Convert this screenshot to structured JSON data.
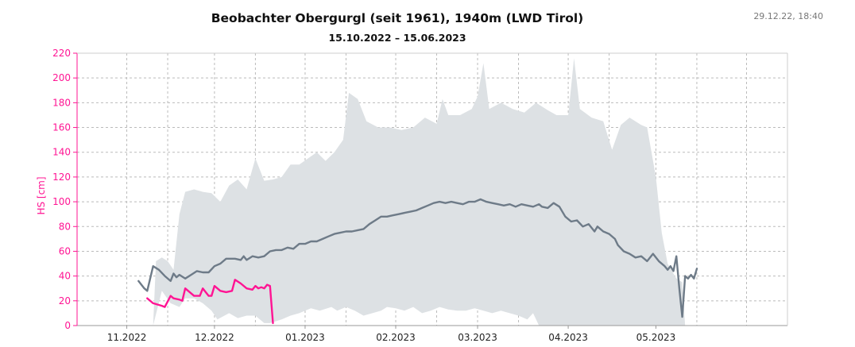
{
  "header": {
    "title": "Beobachter Obergurgl (seit 1961), 1940m (LWD Tirol)",
    "subtitle": "15.10.2022 – 15.06.2023",
    "timestamp": "29.12.22, 18:40"
  },
  "colors": {
    "axis_accent": "#ff1493",
    "current_season": "#ff1493",
    "median": "#6e7b88",
    "range_band": "#dde1e4",
    "grid": "#bbbbbb"
  },
  "chart_data": {
    "type": "area",
    "ylabel": "HS [cm]",
    "xlabel": "",
    "ylim": [
      0,
      220
    ],
    "yticks": [
      0,
      20,
      40,
      60,
      80,
      100,
      120,
      140,
      160,
      180,
      200,
      220
    ],
    "xlim": [
      "2022-10-15",
      "2023-06-15"
    ],
    "xticks": [
      {
        "date": "2022-11-01",
        "label": "11.2022"
      },
      {
        "date": "2022-12-01",
        "label": "12.2022"
      },
      {
        "date": "2023-01-01",
        "label": "01.2023"
      },
      {
        "date": "2023-02-01",
        "label": "02.2023"
      },
      {
        "date": "2023-03-01",
        "label": "03.2023"
      },
      {
        "date": "2023-04-01",
        "label": "04.2023"
      },
      {
        "date": "2023-05-01",
        "label": "05.2023"
      }
    ],
    "x_gridlines": [
      "2022-10-15",
      "2022-11-01",
      "2022-11-15",
      "2022-12-01",
      "2022-12-15",
      "2023-01-01",
      "2023-01-15",
      "2023-02-01",
      "2023-02-15",
      "2023-03-01",
      "2023-03-15",
      "2023-04-01",
      "2023-04-15",
      "2023-05-01",
      "2023-05-15",
      "2023-06-01"
    ],
    "grid": true,
    "series": [
      {
        "role": "range",
        "upper": [
          [
            "2022-11-10",
            0
          ],
          [
            "2022-11-11",
            52
          ],
          [
            "2022-11-13",
            55
          ],
          [
            "2022-11-15",
            52
          ],
          [
            "2022-11-17",
            45
          ],
          [
            "2022-11-19",
            90
          ],
          [
            "2022-11-21",
            108
          ],
          [
            "2022-11-24",
            110
          ],
          [
            "2022-11-27",
            108
          ],
          [
            "2022-11-30",
            107
          ],
          [
            "2022-12-03",
            100
          ],
          [
            "2022-12-06",
            113
          ],
          [
            "2022-12-09",
            118
          ],
          [
            "2022-12-12",
            110
          ],
          [
            "2022-12-15",
            135
          ],
          [
            "2022-12-18",
            117
          ],
          [
            "2022-12-21",
            118
          ],
          [
            "2022-12-24",
            120
          ],
          [
            "2022-12-27",
            130
          ],
          [
            "2022-12-30",
            130
          ],
          [
            "2023-01-02",
            135
          ],
          [
            "2023-01-05",
            140
          ],
          [
            "2023-01-08",
            133
          ],
          [
            "2023-01-11",
            140
          ],
          [
            "2023-01-14",
            150
          ],
          [
            "2023-01-16",
            188
          ],
          [
            "2023-01-19",
            183
          ],
          [
            "2023-01-22",
            165
          ],
          [
            "2023-01-26",
            160
          ],
          [
            "2023-01-30",
            160
          ],
          [
            "2023-02-03",
            158
          ],
          [
            "2023-02-07",
            160
          ],
          [
            "2023-02-11",
            168
          ],
          [
            "2023-02-15",
            163
          ],
          [
            "2023-02-17",
            183
          ],
          [
            "2023-02-19",
            170
          ],
          [
            "2023-02-23",
            170
          ],
          [
            "2023-02-27",
            175
          ],
          [
            "2023-03-01",
            185
          ],
          [
            "2023-03-03",
            212
          ],
          [
            "2023-03-05",
            175
          ],
          [
            "2023-03-09",
            180
          ],
          [
            "2023-03-13",
            175
          ],
          [
            "2023-03-17",
            172
          ],
          [
            "2023-03-21",
            180
          ],
          [
            "2023-03-25",
            174
          ],
          [
            "2023-03-28",
            170
          ],
          [
            "2023-04-01",
            170
          ],
          [
            "2023-04-03",
            216
          ],
          [
            "2023-04-05",
            175
          ],
          [
            "2023-04-09",
            168
          ],
          [
            "2023-04-13",
            165
          ],
          [
            "2023-04-16",
            142
          ],
          [
            "2023-04-19",
            162
          ],
          [
            "2023-04-22",
            168
          ],
          [
            "2023-04-26",
            162
          ],
          [
            "2023-04-28",
            160
          ],
          [
            "2023-05-01",
            120
          ],
          [
            "2023-05-03",
            75
          ],
          [
            "2023-05-05",
            50
          ],
          [
            "2023-05-08",
            38
          ],
          [
            "2023-05-10",
            35
          ],
          [
            "2023-05-11",
            0
          ]
        ],
        "lower": [
          [
            "2022-11-10",
            0
          ],
          [
            "2022-11-13",
            28
          ],
          [
            "2022-11-16",
            18
          ],
          [
            "2022-11-19",
            15
          ],
          [
            "2022-11-21",
            22
          ],
          [
            "2022-11-24",
            22
          ],
          [
            "2022-11-27",
            18
          ],
          [
            "2022-11-30",
            12
          ],
          [
            "2022-12-02",
            5
          ],
          [
            "2022-12-06",
            10
          ],
          [
            "2022-12-09",
            6
          ],
          [
            "2022-12-12",
            8
          ],
          [
            "2022-12-15",
            8
          ],
          [
            "2022-12-18",
            2
          ],
          [
            "2022-12-20",
            2
          ],
          [
            "2022-12-24",
            5
          ],
          [
            "2022-12-27",
            8
          ],
          [
            "2022-12-30",
            10
          ],
          [
            "2023-01-03",
            14
          ],
          [
            "2023-01-06",
            12
          ],
          [
            "2023-01-10",
            15
          ],
          [
            "2023-01-12",
            12
          ],
          [
            "2023-01-15",
            15
          ],
          [
            "2023-01-18",
            12
          ],
          [
            "2023-01-21",
            8
          ],
          [
            "2023-01-24",
            10
          ],
          [
            "2023-01-27",
            12
          ],
          [
            "2023-01-29",
            15
          ],
          [
            "2023-02-01",
            14
          ],
          [
            "2023-02-04",
            12
          ],
          [
            "2023-02-07",
            15
          ],
          [
            "2023-02-10",
            10
          ],
          [
            "2023-02-13",
            12
          ],
          [
            "2023-02-16",
            15
          ],
          [
            "2023-02-19",
            13
          ],
          [
            "2023-02-22",
            12
          ],
          [
            "2023-02-25",
            12
          ],
          [
            "2023-02-28",
            14
          ],
          [
            "2023-03-03",
            12
          ],
          [
            "2023-03-06",
            10
          ],
          [
            "2023-03-09",
            12
          ],
          [
            "2023-03-12",
            10
          ],
          [
            "2023-03-15",
            8
          ],
          [
            "2023-03-18",
            5
          ],
          [
            "2023-03-20",
            10
          ],
          [
            "2023-03-22",
            0
          ],
          [
            "2023-03-27",
            0
          ],
          [
            "2023-04-02",
            0
          ],
          [
            "2023-04-10",
            0
          ],
          [
            "2023-04-20",
            0
          ],
          [
            "2023-05-01",
            0
          ],
          [
            "2023-05-11",
            0
          ]
        ]
      },
      {
        "role": "median",
        "points": [
          [
            "2022-11-05",
            36
          ],
          [
            "2022-11-07",
            30
          ],
          [
            "2022-11-08",
            28
          ],
          [
            "2022-11-10",
            48
          ],
          [
            "2022-11-12",
            45
          ],
          [
            "2022-11-14",
            40
          ],
          [
            "2022-11-16",
            36
          ],
          [
            "2022-11-17",
            42
          ],
          [
            "2022-11-18",
            39
          ],
          [
            "2022-11-19",
            41
          ],
          [
            "2022-11-21",
            38
          ],
          [
            "2022-11-23",
            41
          ],
          [
            "2022-11-25",
            44
          ],
          [
            "2022-11-27",
            43
          ],
          [
            "2022-11-29",
            43
          ],
          [
            "2022-12-01",
            48
          ],
          [
            "2022-12-03",
            50
          ],
          [
            "2022-12-05",
            54
          ],
          [
            "2022-12-08",
            54
          ],
          [
            "2022-12-10",
            53
          ],
          [
            "2022-12-11",
            56
          ],
          [
            "2022-12-12",
            53
          ],
          [
            "2022-12-14",
            56
          ],
          [
            "2022-12-16",
            55
          ],
          [
            "2022-12-18",
            56
          ],
          [
            "2022-12-20",
            60
          ],
          [
            "2022-12-22",
            61
          ],
          [
            "2022-12-24",
            61
          ],
          [
            "2022-12-26",
            63
          ],
          [
            "2022-12-28",
            62
          ],
          [
            "2022-12-30",
            66
          ],
          [
            "2023-01-01",
            66
          ],
          [
            "2023-01-03",
            68
          ],
          [
            "2023-01-05",
            68
          ],
          [
            "2023-01-07",
            70
          ],
          [
            "2023-01-09",
            72
          ],
          [
            "2023-01-11",
            74
          ],
          [
            "2023-01-13",
            75
          ],
          [
            "2023-01-15",
            76
          ],
          [
            "2023-01-17",
            76
          ],
          [
            "2023-01-19",
            77
          ],
          [
            "2023-01-21",
            78
          ],
          [
            "2023-01-23",
            82
          ],
          [
            "2023-01-25",
            85
          ],
          [
            "2023-01-27",
            88
          ],
          [
            "2023-01-29",
            88
          ],
          [
            "2023-01-31",
            89
          ],
          [
            "2023-02-02",
            90
          ],
          [
            "2023-02-04",
            91
          ],
          [
            "2023-02-06",
            92
          ],
          [
            "2023-02-08",
            93
          ],
          [
            "2023-02-10",
            95
          ],
          [
            "2023-02-12",
            97
          ],
          [
            "2023-02-14",
            99
          ],
          [
            "2023-02-16",
            100
          ],
          [
            "2023-02-18",
            99
          ],
          [
            "2023-02-20",
            100
          ],
          [
            "2023-02-22",
            99
          ],
          [
            "2023-02-24",
            98
          ],
          [
            "2023-02-26",
            100
          ],
          [
            "2023-02-28",
            100
          ],
          [
            "2023-03-02",
            102
          ],
          [
            "2023-03-04",
            100
          ],
          [
            "2023-03-06",
            99
          ],
          [
            "2023-03-08",
            98
          ],
          [
            "2023-03-10",
            97
          ],
          [
            "2023-03-12",
            98
          ],
          [
            "2023-03-14",
            96
          ],
          [
            "2023-03-16",
            98
          ],
          [
            "2023-03-18",
            97
          ],
          [
            "2023-03-20",
            96
          ],
          [
            "2023-03-22",
            98
          ],
          [
            "2023-03-23",
            96
          ],
          [
            "2023-03-25",
            95
          ],
          [
            "2023-03-27",
            99
          ],
          [
            "2023-03-29",
            96
          ],
          [
            "2023-03-31",
            88
          ],
          [
            "2023-04-02",
            84
          ],
          [
            "2023-04-04",
            85
          ],
          [
            "2023-04-06",
            80
          ],
          [
            "2023-04-08",
            82
          ],
          [
            "2023-04-10",
            76
          ],
          [
            "2023-04-11",
            80
          ],
          [
            "2023-04-13",
            76
          ],
          [
            "2023-04-15",
            74
          ],
          [
            "2023-04-17",
            70
          ],
          [
            "2023-04-18",
            65
          ],
          [
            "2023-04-20",
            60
          ],
          [
            "2023-04-22",
            58
          ],
          [
            "2023-04-24",
            55
          ],
          [
            "2023-04-26",
            56
          ],
          [
            "2023-04-28",
            52
          ],
          [
            "2023-04-30",
            58
          ],
          [
            "2023-05-02",
            52
          ],
          [
            "2023-05-04",
            48
          ],
          [
            "2023-05-05",
            45
          ],
          [
            "2023-05-06",
            48
          ],
          [
            "2023-05-07",
            44
          ],
          [
            "2023-05-08",
            56
          ],
          [
            "2023-05-09",
            30
          ],
          [
            "2023-05-10",
            7
          ],
          [
            "2023-05-11",
            40
          ],
          [
            "2023-05-12",
            38
          ],
          [
            "2023-05-13",
            41
          ],
          [
            "2023-05-14",
            38
          ],
          [
            "2023-05-15",
            46
          ]
        ]
      },
      {
        "role": "current",
        "points": [
          [
            "2022-11-08",
            22
          ],
          [
            "2022-11-10",
            18
          ],
          [
            "2022-11-13",
            16
          ],
          [
            "2022-11-14",
            15
          ],
          [
            "2022-11-16",
            24
          ],
          [
            "2022-11-17",
            22
          ],
          [
            "2022-11-19",
            21
          ],
          [
            "2022-11-20",
            20
          ],
          [
            "2022-11-21",
            30
          ],
          [
            "2022-11-22",
            28
          ],
          [
            "2022-11-24",
            24
          ],
          [
            "2022-11-26",
            24
          ],
          [
            "2022-11-27",
            30
          ],
          [
            "2022-11-29",
            24
          ],
          [
            "2022-11-30",
            24
          ],
          [
            "2022-12-01",
            32
          ],
          [
            "2022-12-03",
            28
          ],
          [
            "2022-12-05",
            27
          ],
          [
            "2022-12-07",
            28
          ],
          [
            "2022-12-08",
            37
          ],
          [
            "2022-12-10",
            34
          ],
          [
            "2022-12-12",
            30
          ],
          [
            "2022-12-14",
            29
          ],
          [
            "2022-12-15",
            32
          ],
          [
            "2022-12-16",
            30
          ],
          [
            "2022-12-17",
            31
          ],
          [
            "2022-12-18",
            30
          ],
          [
            "2022-12-19",
            33
          ],
          [
            "2022-12-20",
            32
          ],
          [
            "2022-12-21",
            2
          ]
        ]
      }
    ]
  }
}
